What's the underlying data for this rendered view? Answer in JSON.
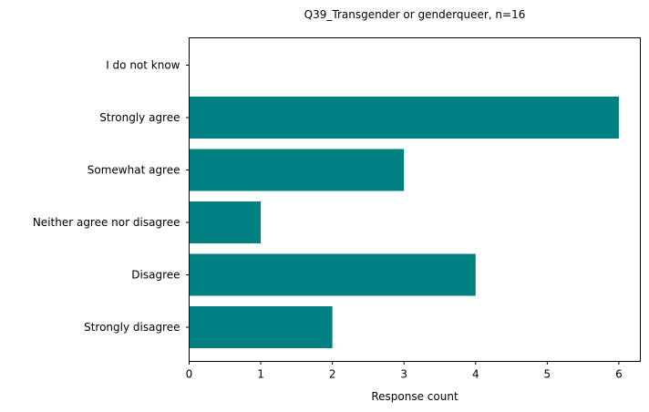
{
  "chart_data": {
    "type": "bar",
    "orientation": "horizontal",
    "title": "Q39_Transgender or genderqueer, n=16",
    "xlabel": "Response count",
    "ylabel": "",
    "categories": [
      "Strongly disagree",
      "Disagree",
      "Neither agree nor disagree",
      "Somewhat agree",
      "Strongly agree",
      "I do not know"
    ],
    "values": [
      2,
      4,
      1,
      3,
      6,
      0
    ],
    "xlim": [
      0,
      6.3
    ],
    "xticks": [
      0,
      1,
      2,
      3,
      4,
      5,
      6
    ],
    "grid": false,
    "bar_color": "#008080"
  }
}
